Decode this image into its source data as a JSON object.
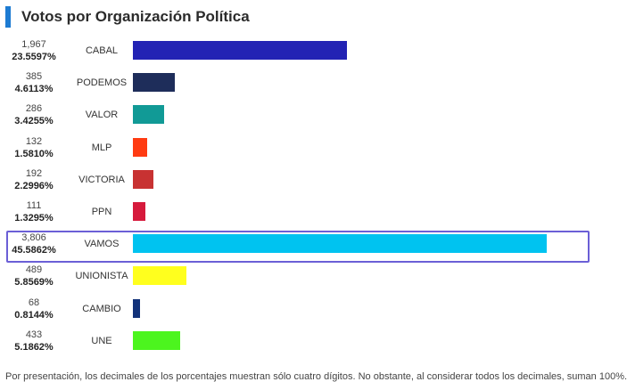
{
  "header": {
    "title": "Votos por Organización Política",
    "accent_color": "#1d7bd2"
  },
  "chart_data": {
    "type": "bar",
    "orientation": "horizontal",
    "title": "Votos por Organización Política",
    "categories": [
      "CABAL",
      "PODEMOS",
      "VALOR",
      "MLP",
      "VICTORIA",
      "PPN",
      "VAMOS",
      "UNIONISTA",
      "CAMBIO",
      "UNE"
    ],
    "votes": [
      "1,967",
      "385",
      "286",
      "132",
      "192",
      "111",
      "3,806",
      "489",
      "68",
      "433"
    ],
    "values": [
      1967,
      385,
      286,
      132,
      192,
      111,
      3806,
      489,
      68,
      433
    ],
    "percentages": [
      "23.5597%",
      "4.6113%",
      "3.4255%",
      "1.5810%",
      "2.2996%",
      "1.3295%",
      "45.5862%",
      "5.8569%",
      "0.8144%",
      "5.1862%"
    ],
    "colors": [
      "#2323b4",
      "#1e2d5a",
      "#119a96",
      "#ff3b12",
      "#c83232",
      "#d61a3c",
      "#00c3f0",
      "#ffff1e",
      "#12327a",
      "#4cf51e"
    ],
    "highlighted": "VAMOS",
    "xlim": [
      0,
      3806
    ]
  },
  "footnote": "Por presentación, los decimales de los porcentajes muestran sólo cuatro dígitos. No obstante, al considerar todos los decimales, suman 100%."
}
